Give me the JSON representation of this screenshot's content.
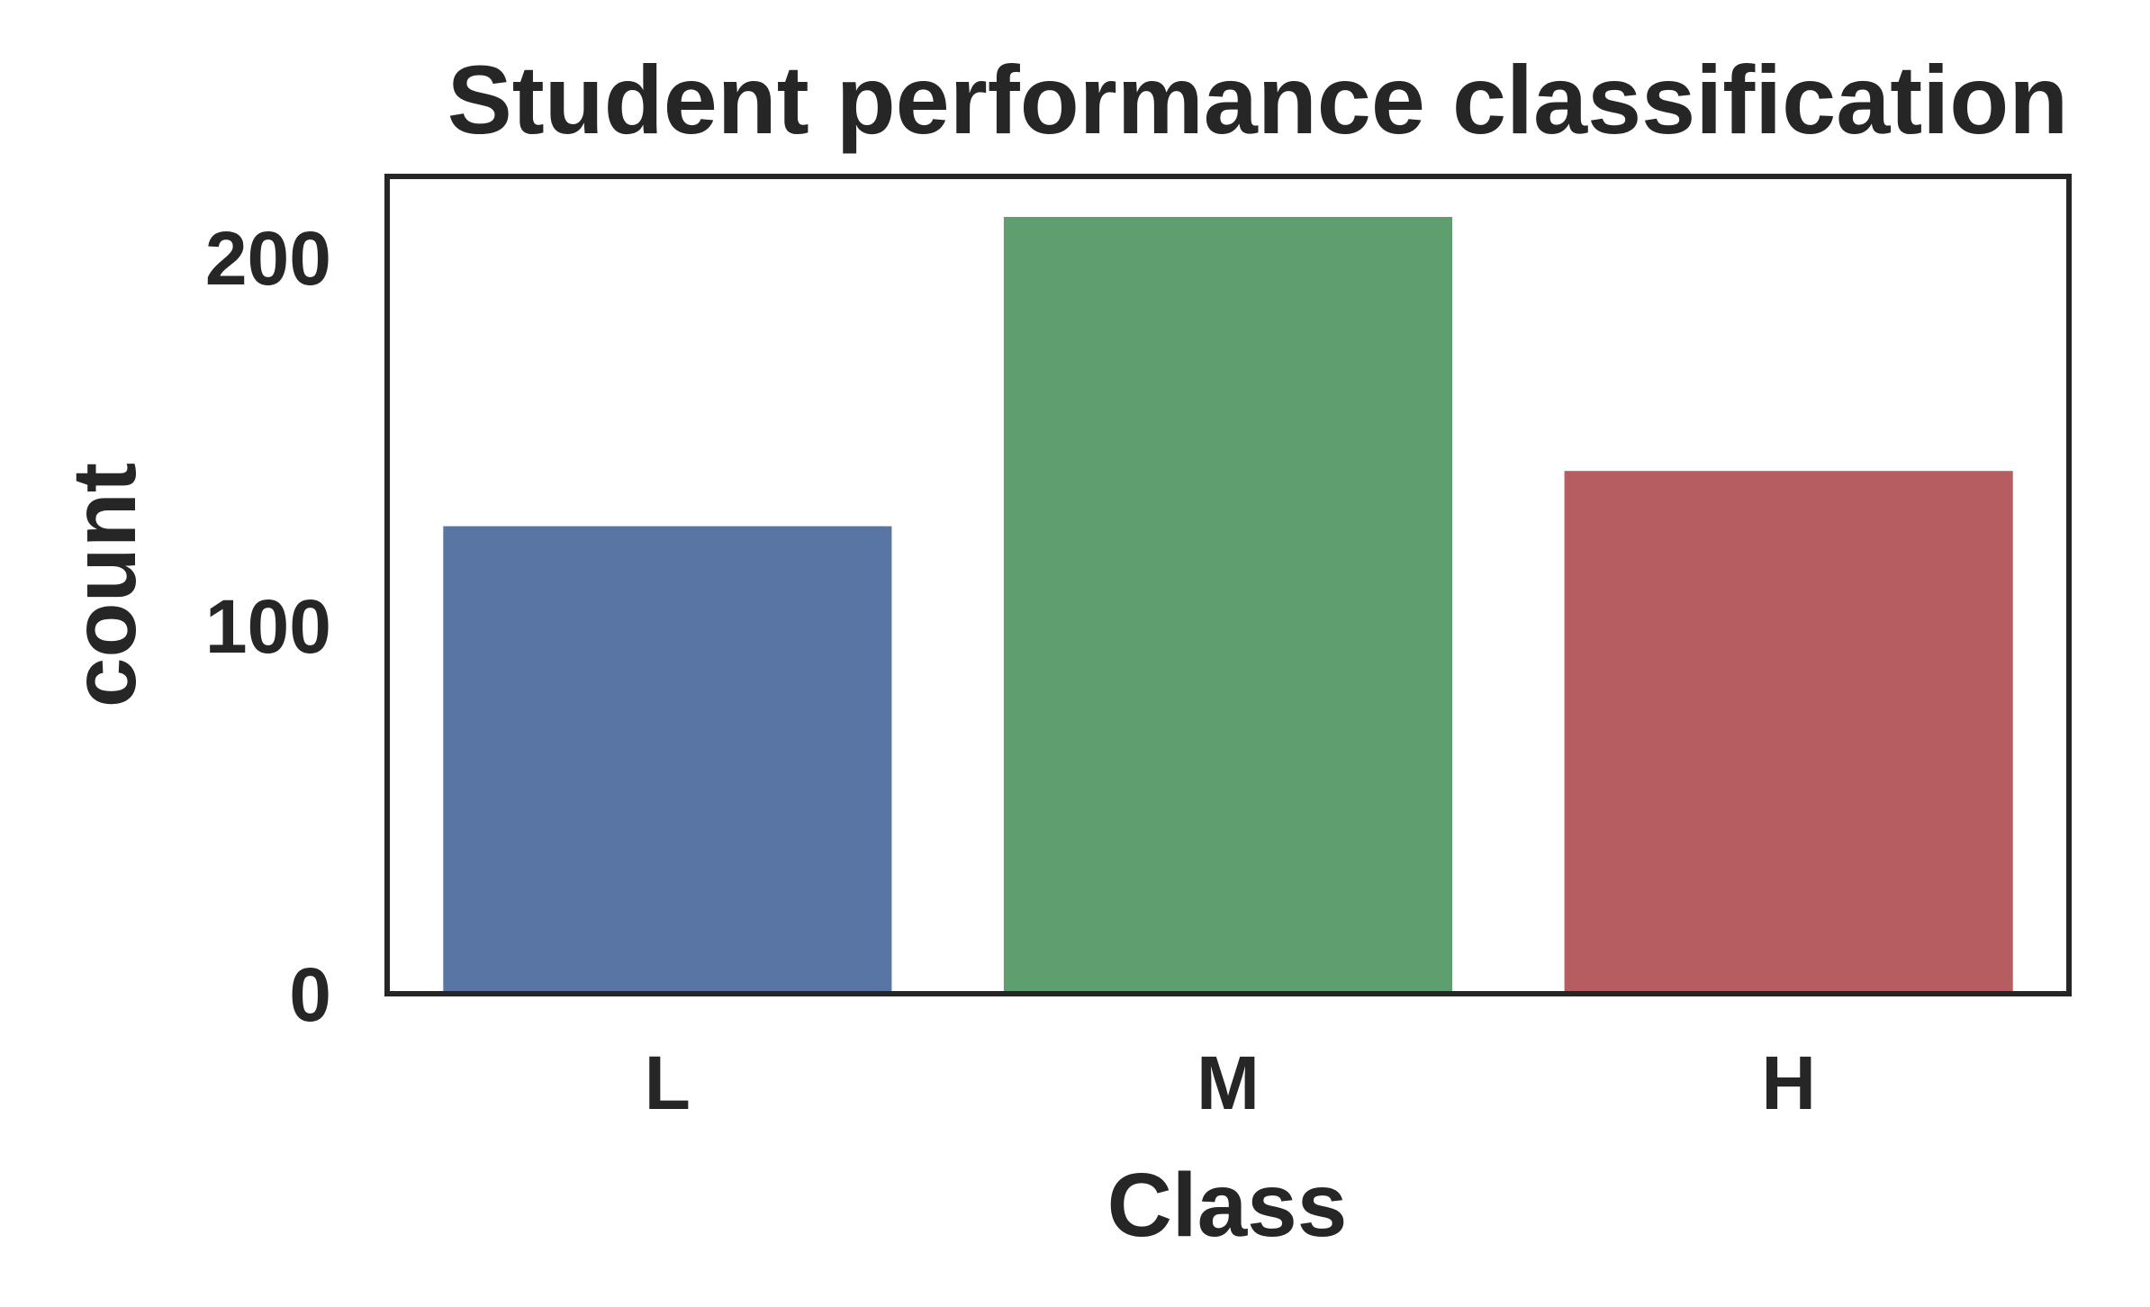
{
  "chart_data": {
    "type": "bar",
    "title": "Student performance classification",
    "xlabel": "Class",
    "ylabel": "count",
    "categories": [
      "L",
      "M",
      "H"
    ],
    "values": [
      127,
      211,
      142
    ],
    "colors": [
      "#5975a4",
      "#5f9e6e",
      "#b55d60"
    ],
    "ylim": [
      0,
      222
    ],
    "yticks": [
      0,
      100,
      200
    ],
    "ytick_labels": [
      "0",
      "100",
      "200"
    ],
    "grid": false,
    "legend": "none",
    "frame_color": "#262626"
  }
}
